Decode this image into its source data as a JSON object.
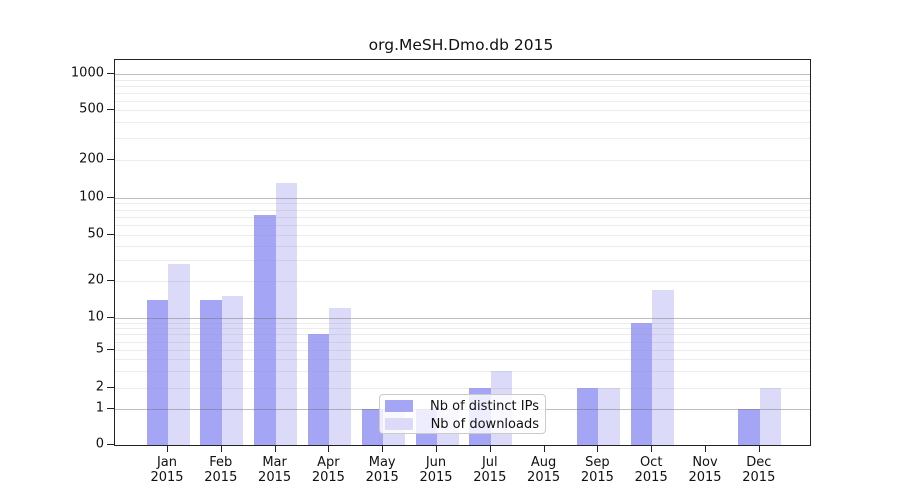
{
  "figure_title": "org.MeSH.Dmo.db 2015",
  "chart_data": {
    "type": "bar",
    "title": "org.MeSH.Dmo.db 2015",
    "categories": [
      "Jan 2015",
      "Feb 2015",
      "Mar 2015",
      "Apr 2015",
      "May 2015",
      "Jun 2015",
      "Jul 2015",
      "Aug 2015",
      "Sep 2015",
      "Oct 2015",
      "Nov 2015",
      "Dec 2015"
    ],
    "x_tick_months": [
      "Jan",
      "Feb",
      "Mar",
      "Apr",
      "May",
      "Jun",
      "Jul",
      "Aug",
      "Sep",
      "Oct",
      "Nov",
      "Dec"
    ],
    "x_tick_year": "2015",
    "series": [
      {
        "name": "Nb of distinct IPs",
        "color": "#a5a5f6",
        "values": [
          14,
          14,
          72,
          7,
          1,
          1,
          2,
          0,
          2,
          9,
          0,
          1
        ]
      },
      {
        "name": "Nb of downloads",
        "color": "#dbdaf8",
        "values": [
          28,
          15,
          130,
          12,
          1,
          1,
          3,
          0,
          2,
          17,
          0,
          2
        ]
      }
    ],
    "yscale": "log",
    "ylim": [
      0,
      1450
    ],
    "y_ticks": [
      0,
      1,
      2,
      5,
      10,
      20,
      50,
      100,
      200,
      500,
      1000
    ],
    "grid": true,
    "legend_position": "inside-lower-center"
  },
  "colors": {
    "background": "#ffffff",
    "spine": "#222222",
    "major_grid": "#c4c4c4",
    "minor_grid": "#e9e9e9",
    "legend_border": "#cbcbcb",
    "text": "#111111"
  }
}
